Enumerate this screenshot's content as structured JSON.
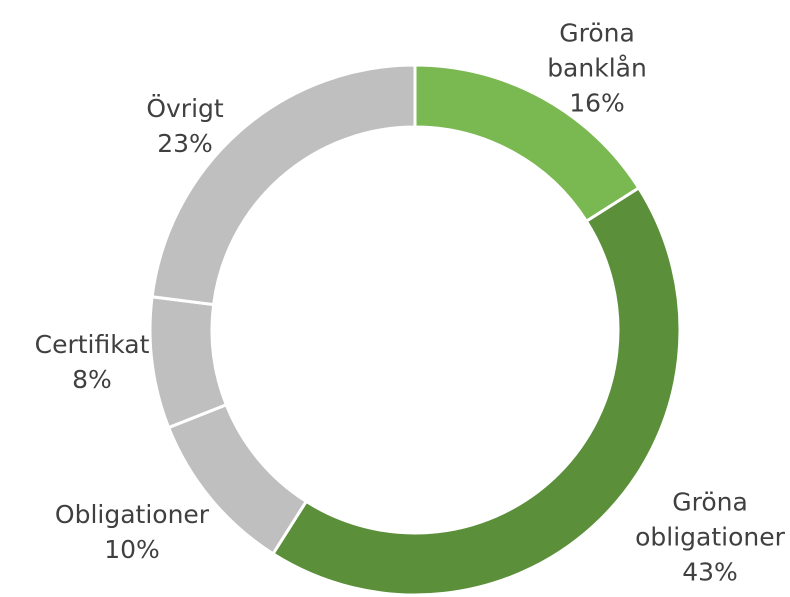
{
  "chart_data": {
    "type": "donut",
    "categories": [
      "Gröna banklån",
      "Gröna obligationer",
      "Obligationer",
      "Certifikat",
      "Övrigt"
    ],
    "values": [
      16,
      43,
      10,
      8,
      23
    ],
    "value_labels": [
      "16%",
      "43%",
      "10%",
      "8%",
      "23%"
    ],
    "colors": [
      "#7ab851",
      "#5b8f3a",
      "#bfbfbf",
      "#bfbfbf",
      "#bfbfbf"
    ]
  }
}
